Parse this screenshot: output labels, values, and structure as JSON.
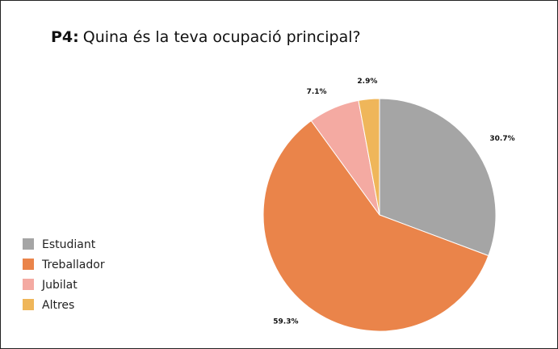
{
  "chart_data": {
    "type": "pie",
    "title_prefix": "P4:",
    "title": "Quina és la teva ocupació principal?",
    "categories": [
      "Estudiant",
      "Treballador",
      "Jubilat",
      "Altres"
    ],
    "values": [
      30.7,
      59.3,
      7.1,
      2.9
    ],
    "value_labels": [
      "30.7%",
      "59.3%",
      "7.1%",
      "2.9%"
    ],
    "colors": [
      "#a5a5a5",
      "#ea844a",
      "#f4aaa2",
      "#efb65a"
    ],
    "legend": "left"
  }
}
